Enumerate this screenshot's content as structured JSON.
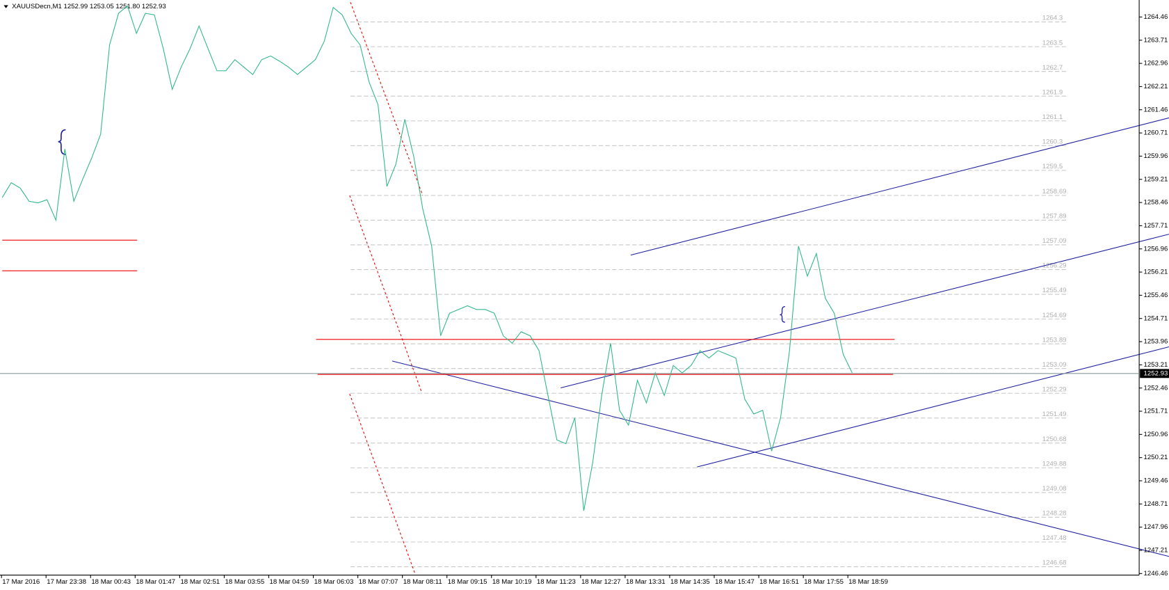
{
  "chart_data": {
    "type": "line",
    "title": "XAUUSDecn,M1  1252.99 1253.05 1251.80 1252.93",
    "color": "#2fb886",
    "values": [
      1258.62,
      1259.1,
      1258.93,
      1258.5,
      1258.45,
      1258.55,
      1257.89,
      1260.19,
      1258.5,
      1259.22,
      1259.9,
      1260.67,
      1263.56,
      1264.58,
      1264.82,
      1263.93,
      1264.58,
      1264.53,
      1263.44,
      1262.12,
      1262.84,
      1263.44,
      1264.17,
      1263.44,
      1262.72,
      1262.72,
      1263.08,
      1262.84,
      1262.6,
      1263.08,
      1263.2,
      1263.03,
      1262.84,
      1262.6,
      1262.84,
      1263.08,
      1263.68,
      1264.77,
      1264.53,
      1263.93,
      1263.56,
      1262.36,
      1261.63,
      1258.98,
      1259.7,
      1261.15,
      1259.94,
      1258.26,
      1257.05,
      1254.15,
      1254.88,
      1255.0,
      1255.12,
      1255.0,
      1255.0,
      1254.88,
      1254.15,
      1253.91,
      1254.28,
      1254.15,
      1253.67,
      1252.22,
      1250.78,
      1250.66,
      1251.5,
      1248.49,
      1250.05,
      1252.22,
      1253.91,
      1251.74,
      1251.26,
      1252.71,
      1251.98,
      1252.95,
      1252.22,
      1253.19,
      1252.95,
      1253.19,
      1253.67,
      1253.43,
      1253.67,
      1253.55,
      1253.43,
      1252.1,
      1251.62,
      1251.74,
      1250.42,
      1251.5,
      1253.67,
      1257.05,
      1256.08,
      1256.81,
      1255.36,
      1254.88,
      1253.55,
      1252.95
    ],
    "x_labels": [
      "17 Mar 2016",
      "17 Mar 23:38",
      "18 Mar 00:43",
      "18 Mar 01:47",
      "18 Mar 02:51",
      "18 Mar 03:55",
      "18 Mar 04:59",
      "18 Mar 06:03",
      "18 Mar 07:07",
      "18 Mar 08:11",
      "18 Mar 09:15",
      "18 Mar 10:19",
      "18 Mar 11:23",
      "18 Mar 12:27",
      "18 Mar 13:31",
      "18 Mar 14:35",
      "18 Mar 15:47",
      "18 Mar 16:51",
      "18 Mar 17:55",
      "18 Mar 18:59"
    ],
    "ylim": [
      1246.41,
      1265.01
    ],
    "yticks": [
      1264.46,
      1263.71,
      1262.96,
      1262.21,
      1261.46,
      1260.71,
      1259.96,
      1259.21,
      1258.46,
      1257.71,
      1256.96,
      1256.21,
      1255.46,
      1254.71,
      1253.96,
      1253.21,
      1252.46,
      1251.71,
      1250.96,
      1250.21,
      1249.46,
      1248.71,
      1247.96,
      1247.21,
      1246.46
    ],
    "current_price": 1252.93,
    "fib_levels": [
      1264.3,
      1263.5,
      1262.7,
      1261.9,
      1261.1,
      1260.3,
      1259.5,
      1258.69,
      1257.89,
      1257.09,
      1256.29,
      1255.49,
      1254.69,
      1253.89,
      1253.09,
      1252.29,
      1251.49,
      1250.68,
      1249.88,
      1249.08,
      1248.28,
      1247.48,
      1246.68
    ]
  }
}
